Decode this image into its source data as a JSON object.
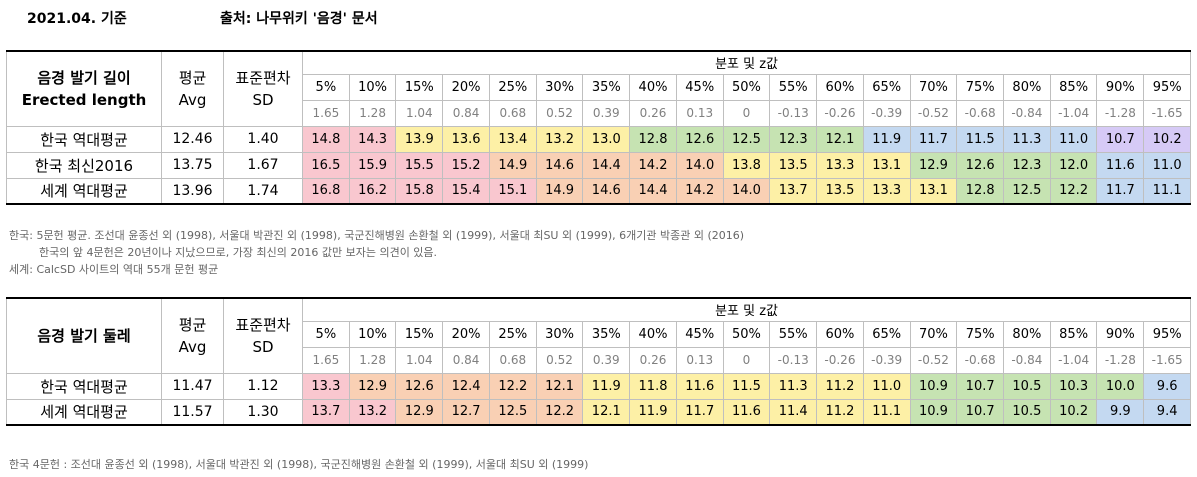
{
  "header": {
    "date": "2021.04. 기준",
    "source": "출처: 나무위키 '음경' 문서"
  },
  "colors": {
    "c_red": "#f9c7cf",
    "c_orange": "#f9d0b4",
    "c_yellow": "#fdf0a6",
    "c_green": "#c6e3b2",
    "c_blue": "#c4d9f1",
    "c_purple": "#d6caf6"
  },
  "percentiles": [
    "5%",
    "10%",
    "15%",
    "20%",
    "25%",
    "30%",
    "35%",
    "40%",
    "45%",
    "50%",
    "55%",
    "60%",
    "65%",
    "70%",
    "75%",
    "80%",
    "85%",
    "90%",
    "95%"
  ],
  "zvalues": [
    "1.65",
    "1.28",
    "1.04",
    "0.84",
    "0.68",
    "0.52",
    "0.39",
    "0.26",
    "0.13",
    "0",
    "-0.13",
    "-0.26",
    "-0.39",
    "-0.52",
    "-0.68",
    "-0.84",
    "-1.04",
    "-1.28",
    "-1.65"
  ],
  "table1": {
    "title_line1": "음경 발기 길이",
    "title_line2": "Erected length",
    "avg_h1": "평균",
    "avg_h2": "Avg",
    "sd_h1": "표준편차",
    "sd_h2": "SD",
    "dist_title": "분포 및 z값",
    "rows": [
      {
        "name": "한국 역대평균",
        "avg": "12.46",
        "sd": "1.40",
        "values": [
          "14.8",
          "14.3",
          "13.9",
          "13.6",
          "13.4",
          "13.2",
          "13.0",
          "12.8",
          "12.6",
          "12.5",
          "12.3",
          "12.1",
          "11.9",
          "11.7",
          "11.5",
          "11.3",
          "11.0",
          "10.7",
          "10.2"
        ],
        "colors": [
          "c_red",
          "c_red",
          "c_yellow",
          "c_yellow",
          "c_yellow",
          "c_yellow",
          "c_yellow",
          "c_green",
          "c_green",
          "c_green",
          "c_green",
          "c_green",
          "c_blue",
          "c_blue",
          "c_blue",
          "c_blue",
          "c_blue",
          "c_purple",
          "c_purple"
        ]
      },
      {
        "name": "한국 최신2016",
        "avg": "13.75",
        "sd": "1.67",
        "values": [
          "16.5",
          "15.9",
          "15.5",
          "15.2",
          "14.9",
          "14.6",
          "14.4",
          "14.2",
          "14.0",
          "13.8",
          "13.5",
          "13.3",
          "13.1",
          "12.9",
          "12.6",
          "12.3",
          "12.0",
          "11.6",
          "11.0"
        ],
        "colors": [
          "c_red",
          "c_red",
          "c_red",
          "c_red",
          "c_orange",
          "c_orange",
          "c_orange",
          "c_orange",
          "c_orange",
          "c_yellow",
          "c_yellow",
          "c_yellow",
          "c_yellow",
          "c_green",
          "c_green",
          "c_green",
          "c_green",
          "c_blue",
          "c_blue"
        ]
      },
      {
        "name": "세계 역대평균",
        "avg": "13.96",
        "sd": "1.74",
        "values": [
          "16.8",
          "16.2",
          "15.8",
          "15.4",
          "15.1",
          "14.9",
          "14.6",
          "14.4",
          "14.2",
          "14.0",
          "13.7",
          "13.5",
          "13.3",
          "13.1",
          "12.8",
          "12.5",
          "12.2",
          "11.7",
          "11.1"
        ],
        "colors": [
          "c_red",
          "c_red",
          "c_red",
          "c_red",
          "c_red",
          "c_orange",
          "c_orange",
          "c_orange",
          "c_orange",
          "c_orange",
          "c_yellow",
          "c_yellow",
          "c_yellow",
          "c_yellow",
          "c_green",
          "c_green",
          "c_green",
          "c_blue",
          "c_blue"
        ]
      }
    ]
  },
  "notes1": [
    "한국: 5문헌 평균. 조선대 윤종선 외 (1998), 서울대 박관진 외 (1998), 국군진해병원 손환철 외 (1999), 서울대 최SU 외 (1999), 6개기관 박종관 외 (2016)",
    "한국의 앞 4문헌은 20년이나 지났으므로, 가장 최신의 2016 값만 보자는 의견이 있음.",
    "세계: CalcSD 사이트의 역대 55개 문헌 평균"
  ],
  "table2": {
    "title_line1": "음경 발기 둘레",
    "avg_h1": "평균",
    "avg_h2": "Avg",
    "sd_h1": "표준편차",
    "sd_h2": "SD",
    "dist_title": "분포 및 z값",
    "rows": [
      {
        "name": "한국 역대평균",
        "avg": "11.47",
        "sd": "1.12",
        "values": [
          "13.3",
          "12.9",
          "12.6",
          "12.4",
          "12.2",
          "12.1",
          "11.9",
          "11.8",
          "11.6",
          "11.5",
          "11.3",
          "11.2",
          "11.0",
          "10.9",
          "10.7",
          "10.5",
          "10.3",
          "10.0",
          "9.6"
        ],
        "colors": [
          "c_red",
          "c_orange",
          "c_orange",
          "c_orange",
          "c_orange",
          "c_orange",
          "c_yellow",
          "c_yellow",
          "c_yellow",
          "c_yellow",
          "c_yellow",
          "c_yellow",
          "c_yellow",
          "c_green",
          "c_green",
          "c_green",
          "c_green",
          "c_green",
          "c_blue"
        ]
      },
      {
        "name": "세계 역대평균",
        "avg": "11.57",
        "sd": "1.30",
        "values": [
          "13.7",
          "13.2",
          "12.9",
          "12.7",
          "12.5",
          "12.2",
          "12.1",
          "11.9",
          "11.7",
          "11.6",
          "11.4",
          "11.2",
          "11.1",
          "10.9",
          "10.7",
          "10.5",
          "10.2",
          "9.9",
          "9.4"
        ],
        "colors": [
          "c_red",
          "c_red",
          "c_orange",
          "c_orange",
          "c_orange",
          "c_orange",
          "c_yellow",
          "c_yellow",
          "c_yellow",
          "c_yellow",
          "c_yellow",
          "c_yellow",
          "c_yellow",
          "c_green",
          "c_green",
          "c_green",
          "c_green",
          "c_blue",
          "c_blue"
        ]
      }
    ]
  },
  "notes2": "한국 4문헌 : 조선대 윤종선 외 (1998), 서울대 박관진 외 (1998), 국군진해병원 손환철 외 (1999), 서울대 최SU 외 (1999)"
}
